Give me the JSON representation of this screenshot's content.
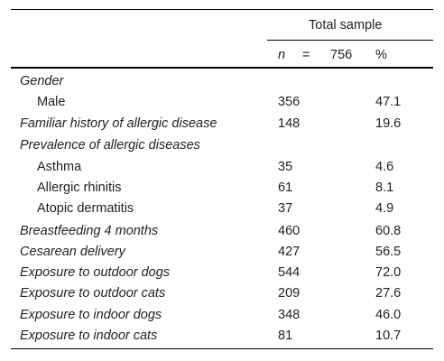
{
  "header": {
    "group_label": "Total sample",
    "n_symbol": "n",
    "equals": "=",
    "n_value": "756",
    "percent_label": "%"
  },
  "rows": [
    {
      "label": "Gender",
      "n": "",
      "pct": ""
    },
    {
      "label": "Male",
      "n": "356",
      "pct": "47.1"
    },
    {
      "label": "Familiar history of allergic disease",
      "n": "148",
      "pct": "19.6"
    },
    {
      "label": "Prevalence of allergic diseases",
      "n": "",
      "pct": ""
    },
    {
      "label": "Asthma",
      "n": "35",
      "pct": "4.6"
    },
    {
      "label": "Allergic rhinitis",
      "n": "61",
      "pct": "8.1"
    },
    {
      "label": "Atopic dermatitis",
      "n": "37",
      "pct": "4.9"
    },
    {
      "label": "Breastfeeding 4 months",
      "n": "460",
      "pct": "60.8"
    },
    {
      "label": "Cesarean delivery",
      "n": "427",
      "pct": "56.5"
    },
    {
      "label": "Exposure to outdoor dogs",
      "n": "544",
      "pct": "72.0"
    },
    {
      "label": "Exposure to outdoor cats",
      "n": "209",
      "pct": "27.6"
    },
    {
      "label": "Exposure to indoor dogs",
      "n": "348",
      "pct": "46.0"
    },
    {
      "label": "Exposure to indoor cats",
      "n": "81",
      "pct": "10.7"
    }
  ]
}
